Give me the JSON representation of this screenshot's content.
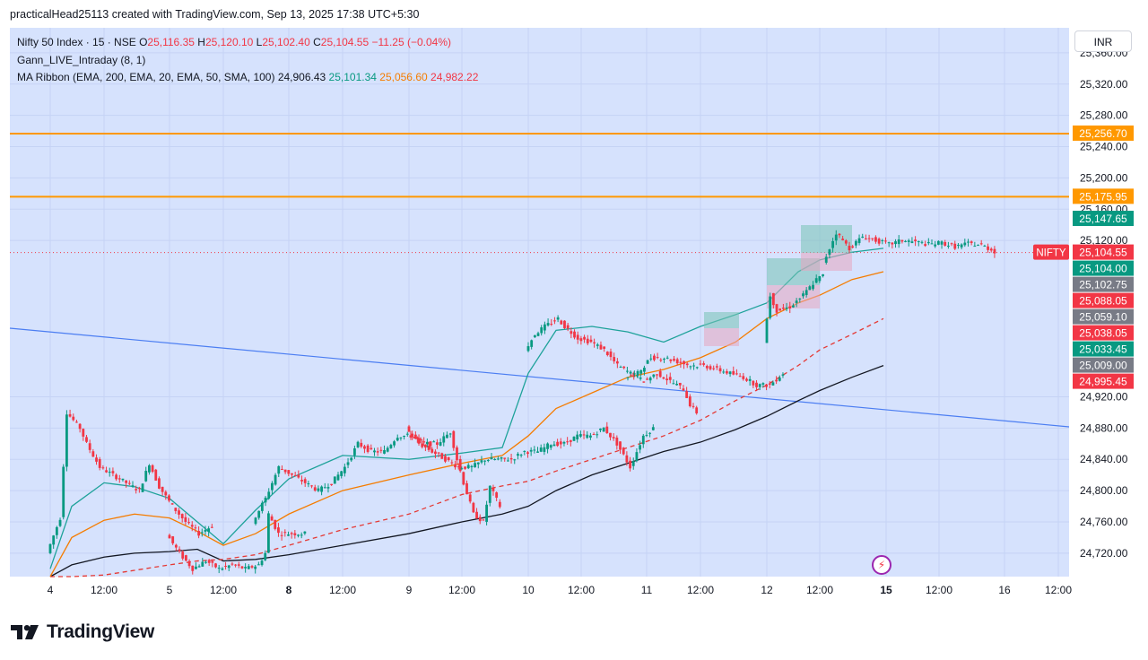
{
  "header": {
    "author_line": "practicalHead25113 created with TradingView.com, Sep 13, 2025 17:38 UTC+5:30"
  },
  "legend": {
    "symbol": "Nifty 50 Index · 15 · NSE",
    "o_label": "O",
    "o_value": "25,116.35",
    "h_label": "H",
    "h_value": "25,120.10",
    "l_label": "L",
    "l_value": "25,102.40",
    "c_label": "C",
    "c_value": "25,104.55",
    "change": "−11.25 (−0.04%)",
    "indicator1": "Gann_LIVE_Intraday (8, 1)",
    "indicator2": "MA Ribbon (EMA, 200, EMA, 20, EMA, 50, SMA, 100)",
    "ma_values": [
      "24,906.43",
      "25,101.34",
      "25,056.60",
      "24,982.22"
    ]
  },
  "currency": "INR",
  "symbol_tag": "NIFTY",
  "brand": "TradingView",
  "icons": {
    "flash": "flash-icon",
    "logo": "tradingview-logo-icon"
  },
  "colors": {
    "background": "#d6e2fd",
    "up": "#089981",
    "down": "#f23645",
    "gann_line": "#ff9800",
    "trend_line": "#4c7ef2",
    "ema20": "#1ea29a",
    "ema50": "#f57c00",
    "ema200": "#1a1a1a",
    "sma100": "#e53935"
  },
  "chart_data": {
    "type": "candlestick",
    "y_ticks": [
      "25,360.00",
      "25,320.00",
      "25,280.00",
      "25,240.00",
      "25,200.00",
      "25,160.00",
      "25,120.00",
      "24,920.00",
      "24,880.00",
      "24,840.00",
      "24,800.00",
      "24,760.00",
      "24,720.00"
    ],
    "y_tick_values": [
      25360,
      25320,
      25280,
      25240,
      25200,
      25160,
      25120,
      24920,
      24880,
      24840,
      24800,
      24760,
      24720
    ],
    "ylim": [
      24690,
      25392
    ],
    "x_ticks": [
      {
        "label": "4",
        "bold": false
      },
      {
        "label": "12:00",
        "bold": false
      },
      {
        "label": "5",
        "bold": false
      },
      {
        "label": "12:00",
        "bold": false
      },
      {
        "label": "8",
        "bold": true
      },
      {
        "label": "12:00",
        "bold": false
      },
      {
        "label": "9",
        "bold": false
      },
      {
        "label": "12:00",
        "bold": false
      },
      {
        "label": "10",
        "bold": false
      },
      {
        "label": "12:00",
        "bold": false
      },
      {
        "label": "11",
        "bold": false
      },
      {
        "label": "12:00",
        "bold": false
      },
      {
        "label": "12",
        "bold": false
      },
      {
        "label": "12:00",
        "bold": false
      },
      {
        "label": "15",
        "bold": true
      },
      {
        "label": "12:00",
        "bold": false
      },
      {
        "label": "16",
        "bold": false
      },
      {
        "label": "12:00",
        "bold": false
      }
    ],
    "horizontal_levels": [
      25256.7,
      25175.95
    ],
    "current_price": 25104.55,
    "price_labels": [
      {
        "text": "25,256.70",
        "value": 25256.7,
        "color": "#ff9800"
      },
      {
        "text": "25,175.95",
        "value": 25175.95,
        "color": "#ff9800"
      },
      {
        "text": "25,147.65",
        "value": 25147.65,
        "color": "#089981"
      },
      {
        "text": "25,104.55",
        "value": 25104.55,
        "color": "#f23645"
      },
      {
        "text": "25,104.00",
        "value": 25104.0,
        "color": "#089981"
      },
      {
        "text": "25,102.75",
        "value": 25102.75,
        "color": "#787b86"
      },
      {
        "text": "25,088.05",
        "value": 25088.05,
        "color": "#f23645"
      },
      {
        "text": "25,059.10",
        "value": 25059.1,
        "color": "#787b86"
      },
      {
        "text": "25,038.05",
        "value": 25038.05,
        "color": "#f23645"
      },
      {
        "text": "25,033.45",
        "value": 25033.45,
        "color": "#089981"
      },
      {
        "text": "25,009.00",
        "value": 25009.0,
        "color": "#787b86"
      },
      {
        "text": "24,995.45",
        "value": 24995.45,
        "color": "#f23645"
      }
    ],
    "days": [
      {
        "day": "4",
        "path": [
          [
            0,
            24720
          ],
          [
            4,
            24765
          ],
          [
            6,
            24900
          ],
          [
            10,
            24880
          ],
          [
            12,
            24860
          ],
          [
            16,
            24830
          ],
          [
            20,
            24820
          ],
          [
            24,
            24810
          ],
          [
            28,
            24800
          ],
          [
            31,
            24835
          ],
          [
            34,
            24805
          ],
          [
            38,
            24780
          ],
          [
            42,
            24760
          ],
          [
            46,
            24745
          ],
          [
            50,
            24755
          ]
        ]
      },
      {
        "day": "5",
        "path": [
          [
            0,
            24745
          ],
          [
            4,
            24720
          ],
          [
            8,
            24700
          ],
          [
            12,
            24710
          ],
          [
            16,
            24700
          ],
          [
            20,
            24705
          ],
          [
            24,
            24700
          ],
          [
            28,
            24705
          ],
          [
            30,
            24720
          ],
          [
            31,
            24770
          ],
          [
            34,
            24745
          ],
          [
            38,
            24745
          ],
          [
            42,
            24745
          ]
        ]
      },
      {
        "day": "8",
        "path": [
          [
            0,
            24760
          ],
          [
            4,
            24790
          ],
          [
            8,
            24830
          ],
          [
            12,
            24820
          ],
          [
            16,
            24810
          ],
          [
            20,
            24800
          ],
          [
            24,
            24810
          ],
          [
            28,
            24830
          ],
          [
            32,
            24860
          ],
          [
            36,
            24850
          ],
          [
            40,
            24850
          ],
          [
            44,
            24870
          ],
          [
            48,
            24870
          ],
          [
            52,
            24860
          ],
          [
            56,
            24860
          ],
          [
            60,
            24875
          ],
          [
            62,
            24840
          ],
          [
            64,
            24810
          ],
          [
            67,
            24770
          ],
          [
            70,
            24760
          ],
          [
            72,
            24805
          ],
          [
            75,
            24780
          ]
        ]
      },
      {
        "day": "9",
        "path": [
          [
            0,
            24880
          ],
          [
            4,
            24860
          ],
          [
            8,
            24850
          ],
          [
            12,
            24840
          ],
          [
            16,
            24830
          ],
          [
            20,
            24830
          ],
          [
            24,
            24840
          ],
          [
            28,
            24840
          ],
          [
            32,
            24840
          ],
          [
            36,
            24850
          ],
          [
            40,
            24850
          ],
          [
            44,
            24860
          ],
          [
            48,
            24860
          ],
          [
            52,
            24870
          ],
          [
            56,
            24870
          ],
          [
            60,
            24880
          ],
          [
            64,
            24860
          ],
          [
            68,
            24830
          ],
          [
            72,
            24870
          ],
          [
            75,
            24880
          ]
        ]
      },
      {
        "day": "10",
        "path": [
          [
            0,
            24980
          ],
          [
            3,
            25000
          ],
          [
            6,
            25010
          ],
          [
            10,
            25020
          ],
          [
            12,
            25010
          ],
          [
            16,
            24995
          ],
          [
            20,
            24990
          ],
          [
            24,
            24980
          ],
          [
            28,
            24960
          ],
          [
            32,
            24950
          ],
          [
            36,
            24940
          ],
          [
            40,
            24950
          ],
          [
            44,
            24940
          ],
          [
            48,
            24930
          ],
          [
            50,
            24910
          ],
          [
            52,
            24900
          ]
        ]
      },
      {
        "day": "11",
        "path": [
          [
            0,
            24945
          ],
          [
            4,
            24950
          ],
          [
            8,
            24970
          ],
          [
            12,
            24970
          ],
          [
            16,
            24965
          ],
          [
            20,
            24960
          ],
          [
            24,
            24960
          ],
          [
            28,
            24955
          ],
          [
            32,
            24950
          ],
          [
            36,
            24945
          ],
          [
            40,
            24935
          ],
          [
            44,
            24935
          ],
          [
            48,
            24950
          ]
        ]
      },
      {
        "day": "12",
        "path": [
          [
            0,
            24990
          ],
          [
            2,
            25050
          ],
          [
            4,
            25030
          ],
          [
            8,
            25035
          ],
          [
            12,
            25050
          ],
          [
            16,
            25070
          ],
          [
            18,
            25075
          ]
        ]
      },
      {
        "day": "12b",
        "path": [
          [
            18,
            25090
          ],
          [
            22,
            25130
          ],
          [
            26,
            25110
          ],
          [
            30,
            25125
          ],
          [
            34,
            25120
          ],
          [
            38,
            25115
          ],
          [
            42,
            25120
          ],
          [
            46,
            25118
          ],
          [
            50,
            25115
          ],
          [
            54,
            25117
          ],
          [
            58,
            25112
          ],
          [
            62,
            25116
          ],
          [
            66,
            25114
          ],
          [
            70,
            25106
          ]
        ]
      }
    ]
  }
}
